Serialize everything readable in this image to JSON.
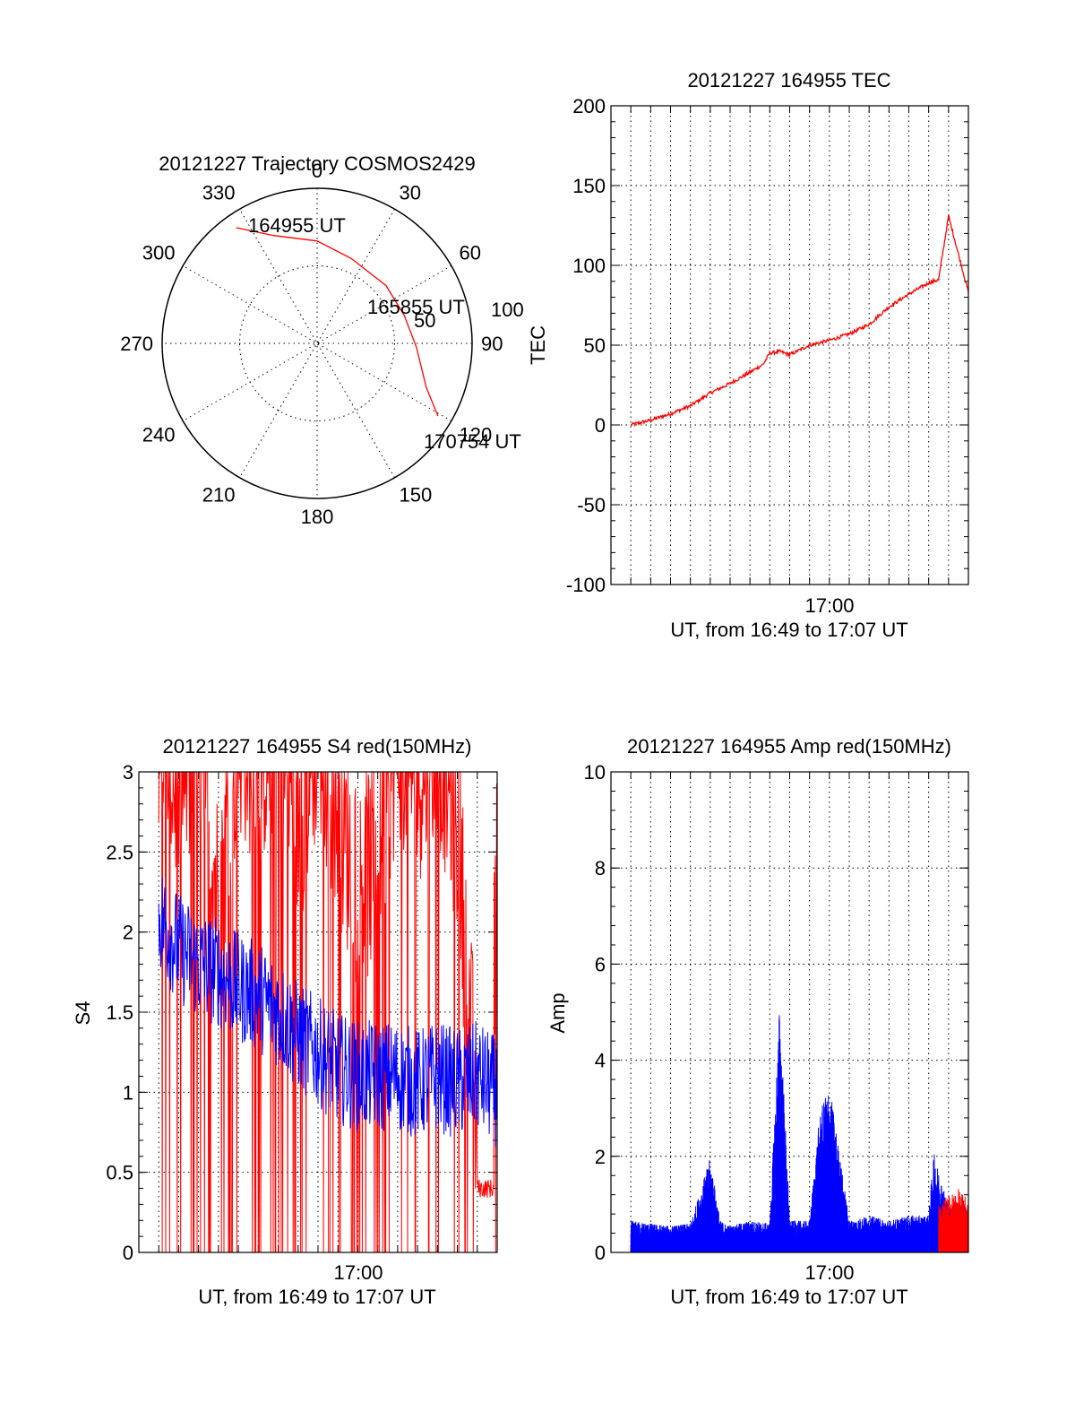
{
  "chart_data": [
    {
      "id": "trajectory",
      "type": "scatter",
      "coordinate_system": "polar",
      "title": "20121227 Trajectory COSMOS2429",
      "azimuth_labels": [
        "0",
        "30",
        "60",
        "90",
        "120",
        "150",
        "180",
        "210",
        "240",
        "270",
        "300",
        "330"
      ],
      "ring_labels": [
        "50",
        "100"
      ],
      "grid": true,
      "series": [
        {
          "color": "#ff0000",
          "points": [
            {
              "az": 325,
              "r": 91
            },
            {
              "az": 338,
              "r": 75
            },
            {
              "az": 0,
              "r": 66
            },
            {
              "az": 22,
              "r": 59
            },
            {
              "az": 50,
              "r": 58
            },
            {
              "az": 72,
              "r": 59
            },
            {
              "az": 92,
              "r": 64
            },
            {
              "az": 112,
              "r": 76
            },
            {
              "az": 121,
              "r": 91
            }
          ]
        }
      ],
      "annotations": [
        "164955 UT",
        "165855 UT",
        "170754 UT"
      ]
    },
    {
      "id": "tec",
      "type": "line",
      "title": "20121227 164955 TEC",
      "xlabel": "UT, from 16:49 to 17:07 UT",
      "ylabel": "TEC",
      "xlim": [
        "16:49:00",
        "17:07:00"
      ],
      "ylim": [
        -100,
        200
      ],
      "yticks": [
        "200",
        "150",
        "100",
        "50",
        "0",
        "-50",
        "-100"
      ],
      "xtick_label": "17:00",
      "grid": true,
      "series": [
        {
          "color": "#ff0000",
          "x": [
            "16:50:00",
            "16:51:00",
            "16:52:00",
            "16:53:00",
            "16:54:00",
            "16:55:00",
            "16:56:00",
            "16:56:40",
            "16:57:00",
            "16:57:30",
            "16:58:00",
            "16:59:00",
            "17:00:00",
            "17:01:00",
            "17:02:00",
            "17:03:00",
            "17:04:00",
            "17:05:00",
            "17:05:30",
            "17:06:00",
            "17:07:00"
          ],
          "values": [
            0,
            3,
            7,
            12,
            20,
            26,
            33,
            38,
            45,
            46,
            44,
            50,
            53,
            57,
            63,
            74,
            82,
            89,
            91,
            131,
            83
          ]
        }
      ]
    },
    {
      "id": "s4",
      "type": "line",
      "title": "20121227 164955 S4 red(150MHz)",
      "xlabel": "UT, from 16:49 to 17:07 UT",
      "ylabel": "S4",
      "xlim": [
        "16:49:00",
        "17:07:00"
      ],
      "ylim": [
        0,
        3
      ],
      "yticks": [
        "3",
        "2.5",
        "2",
        "1.5",
        "1",
        "0.5",
        "0"
      ],
      "xtick_label": "17:00",
      "grid": true,
      "series": [
        {
          "color": "#ff0000",
          "x": [
            "16:50:00",
            "16:51:00",
            "16:52:00",
            "16:53:00",
            "16:54:00",
            "16:55:00",
            "16:56:00",
            "16:57:00",
            "16:58:00",
            "16:59:00",
            "17:00:00",
            "17:01:00",
            "17:02:00",
            "17:03:00",
            "17:04:00",
            "17:05:00",
            "17:06:00",
            "17:06:40",
            "17:07:00"
          ],
          "values": [
            3.0,
            2.6,
            3.0,
            1.9,
            3.0,
            2.8,
            3.0,
            2.4,
            3.0,
            2.5,
            2.0,
            2.2,
            3.0,
            2.7,
            3.0,
            2.4,
            0.45,
            0.4,
            2.5
          ]
        },
        {
          "color": "#0000ff",
          "x": [
            "16:50:00",
            "16:51:00",
            "16:52:00",
            "16:53:00",
            "16:54:00",
            "16:55:00",
            "16:56:00",
            "16:57:00",
            "16:58:00",
            "16:59:00",
            "17:00:00",
            "17:01:00",
            "17:02:00",
            "17:03:00",
            "17:04:00",
            "17:05:00",
            "17:06:00",
            "17:07:00"
          ],
          "values": [
            2.1,
            1.9,
            1.8,
            1.75,
            1.65,
            1.6,
            1.5,
            1.35,
            1.25,
            1.15,
            1.1,
            1.1,
            1.1,
            1.05,
            1.1,
            1.05,
            1.1,
            1.0
          ]
        }
      ]
    },
    {
      "id": "amp",
      "type": "area",
      "title": "20121227 164955 Amp red(150MHz)",
      "xlabel": "UT, from 16:49 to 17:07 UT",
      "ylabel": "Amp",
      "xlim": [
        "16:49:00",
        "17:07:00"
      ],
      "ylim": [
        0,
        10
      ],
      "yticks": [
        "10",
        "8",
        "6",
        "4",
        "2",
        "0"
      ],
      "xtick_label": "17:00",
      "grid": true,
      "series": [
        {
          "color": "#0000ff",
          "x": [
            "16:50:00",
            "16:51:00",
            "16:52:00",
            "16:53:00",
            "16:54:00",
            "16:54:30",
            "16:55:00",
            "16:56:00",
            "16:57:00",
            "16:57:30",
            "16:58:00",
            "16:59:00",
            "16:59:30",
            "17:00:00",
            "17:01:00",
            "17:02:00",
            "17:03:00",
            "17:04:00",
            "17:05:00",
            "17:05:15",
            "17:06:00",
            "17:07:00"
          ],
          "values": [
            0.6,
            0.55,
            0.5,
            0.55,
            1.8,
            0.6,
            0.5,
            0.6,
            0.55,
            4.8,
            0.6,
            0.6,
            2.6,
            3.2,
            0.6,
            0.7,
            0.6,
            0.7,
            0.7,
            1.9,
            0.9,
            0.9
          ]
        },
        {
          "color": "#ff0000",
          "x": [
            "17:05:30",
            "17:06:00",
            "17:06:30",
            "17:07:00"
          ],
          "values": [
            0.9,
            1.1,
            1.2,
            1.0
          ]
        }
      ]
    }
  ]
}
